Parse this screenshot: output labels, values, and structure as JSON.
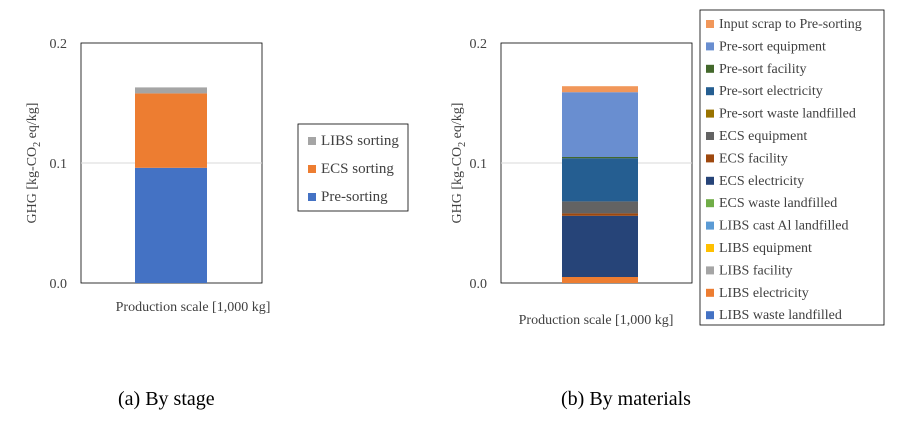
{
  "captions": {
    "a": "(a) By stage",
    "b": "(b) By materials"
  },
  "chart_data": [
    {
      "type": "bar",
      "stacked": true,
      "categories": [
        "Production scale [1,000 kg]"
      ],
      "xlabel": "Production scale [1,000 kg]",
      "ylabel_parts": [
        "GHG [kg-CO",
        "2",
        " eq/kg]"
      ],
      "ylim": [
        0,
        0.2
      ],
      "yticks": [
        "0.0",
        "0.1",
        "0.2"
      ],
      "grid": true,
      "legend_position": "right",
      "legend_order": [
        "LIBS sorting",
        "ECS sorting",
        "Pre-sorting"
      ],
      "series": [
        {
          "name": "Pre-sorting",
          "values": [
            0.096
          ],
          "color": "#4472C4"
        },
        {
          "name": "ECS sorting",
          "values": [
            0.062
          ],
          "color": "#ED7D31"
        },
        {
          "name": "LIBS sorting",
          "values": [
            0.005
          ],
          "color": "#A5A5A5"
        }
      ]
    },
    {
      "type": "bar",
      "stacked": true,
      "categories": [
        "Production scale [1,000 kg]"
      ],
      "xlabel": "Production scale [1,000 kg]",
      "ylabel_parts": [
        "GHG [kg-CO",
        "2",
        " eq/kg]"
      ],
      "ylim": [
        0,
        0.2
      ],
      "yticks": [
        "0.0",
        "0.1",
        "0.2"
      ],
      "grid": true,
      "legend_position": "right",
      "legend_order": [
        "Input scrap to Pre-sorting",
        "Pre-sort equipment",
        "Pre-sort facility",
        "Pre-sort electricity",
        "Pre-sort waste landfilled",
        "ECS equipment",
        "ECS facility",
        "ECS electricity",
        "ECS waste landfilled",
        "LIBS cast Al landfilled",
        "LIBS equipment",
        "LIBS facility",
        "LIBS electricity",
        "LIBS waste landfilled"
      ],
      "series": [
        {
          "name": "LIBS waste landfilled",
          "values": [
            0.0
          ],
          "color": "#4472C4"
        },
        {
          "name": "LIBS electricity",
          "values": [
            0.005
          ],
          "color": "#ED7D31"
        },
        {
          "name": "LIBS facility",
          "values": [
            0.0
          ],
          "color": "#A5A5A5"
        },
        {
          "name": "LIBS equipment",
          "values": [
            0.0
          ],
          "color": "#FFC000"
        },
        {
          "name": "LIBS cast Al landfilled",
          "values": [
            0.0
          ],
          "color": "#5B9BD5"
        },
        {
          "name": "ECS waste landfilled",
          "values": [
            0.0
          ],
          "color": "#70AD47"
        },
        {
          "name": "ECS electricity",
          "values": [
            0.051
          ],
          "color": "#264478"
        },
        {
          "name": "ECS facility",
          "values": [
            0.002
          ],
          "color": "#9E480E"
        },
        {
          "name": "ECS equipment",
          "values": [
            0.01
          ],
          "color": "#636363"
        },
        {
          "name": "Pre-sort waste landfilled",
          "values": [
            0.0
          ],
          "color": "#997300"
        },
        {
          "name": "Pre-sort electricity",
          "values": [
            0.036
          ],
          "color": "#255E91"
        },
        {
          "name": "Pre-sort facility",
          "values": [
            0.001
          ],
          "color": "#43682B"
        },
        {
          "name": "Pre-sort equipment",
          "values": [
            0.054
          ],
          "color": "#698ED0"
        },
        {
          "name": "Input scrap to Pre-sorting",
          "values": [
            0.005
          ],
          "color": "#F1975A"
        }
      ]
    }
  ]
}
